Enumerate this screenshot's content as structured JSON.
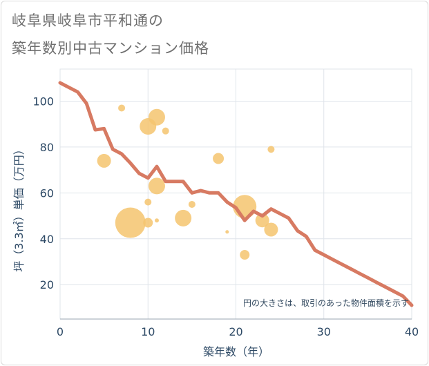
{
  "title_lines": [
    "岐阜県岐阜市平和通の",
    "築年数別中古マンション価格"
  ],
  "chart_data": {
    "type": "scatter",
    "title": "岐阜県岐阜市平和通の築年数別中古マンション価格",
    "xlabel": "築年数（年）",
    "ylabel": "坪（3.3㎡）単価（万円）",
    "xlim": [
      0,
      40
    ],
    "ylim": [
      5,
      114
    ],
    "xticks": [
      0,
      10,
      20,
      30,
      40
    ],
    "yticks": [
      20,
      40,
      60,
      80,
      100
    ],
    "grid": true,
    "annotation": "円の大きさは、取引のあった物件面積を示す",
    "colors": {
      "line": "#d77a62",
      "bubble": "#f5c46f",
      "grid": "#dfe4ea",
      "axis_text": "#2e4a66"
    },
    "series": [
      {
        "type": "line",
        "x": [
          0,
          1,
          2,
          3,
          4,
          5,
          6,
          7,
          8,
          9,
          10,
          11,
          12,
          13,
          14,
          15,
          16,
          17,
          18,
          19,
          20,
          21,
          22,
          23,
          24,
          25,
          26,
          27,
          28,
          29,
          30,
          31,
          32,
          33,
          34,
          35,
          36,
          37,
          38,
          39,
          40
        ],
        "y": [
          108,
          106,
          104,
          99,
          87.5,
          88,
          79,
          77,
          73,
          68.5,
          66.5,
          71.5,
          65,
          65,
          65,
          60,
          61,
          60,
          60,
          56,
          53.5,
          48,
          52,
          50,
          53,
          51,
          49,
          43.5,
          41,
          35,
          33,
          31,
          29,
          27,
          25,
          23,
          21,
          19,
          17,
          15,
          11
        ]
      },
      {
        "type": "bubble",
        "points": [
          {
            "x": 5,
            "y": 74,
            "size": 10
          },
          {
            "x": 7,
            "y": 97,
            "size": 5
          },
          {
            "x": 8,
            "y": 47,
            "size": 22
          },
          {
            "x": 10,
            "y": 89,
            "size": 12
          },
          {
            "x": 10,
            "y": 56,
            "size": 5
          },
          {
            "x": 10,
            "y": 47,
            "size": 7
          },
          {
            "x": 11,
            "y": 93,
            "size": 12
          },
          {
            "x": 11,
            "y": 63,
            "size": 12
          },
          {
            "x": 11,
            "y": 48,
            "size": 3
          },
          {
            "x": 12,
            "y": 87,
            "size": 5
          },
          {
            "x": 14,
            "y": 49,
            "size": 12
          },
          {
            "x": 15,
            "y": 55,
            "size": 5
          },
          {
            "x": 18,
            "y": 75,
            "size": 8
          },
          {
            "x": 19,
            "y": 43,
            "size": 2.5
          },
          {
            "x": 21,
            "y": 54,
            "size": 17
          },
          {
            "x": 21,
            "y": 33,
            "size": 7
          },
          {
            "x": 23,
            "y": 48,
            "size": 10
          },
          {
            "x": 24,
            "y": 79,
            "size": 5
          },
          {
            "x": 24,
            "y": 44,
            "size": 10
          }
        ]
      }
    ]
  }
}
